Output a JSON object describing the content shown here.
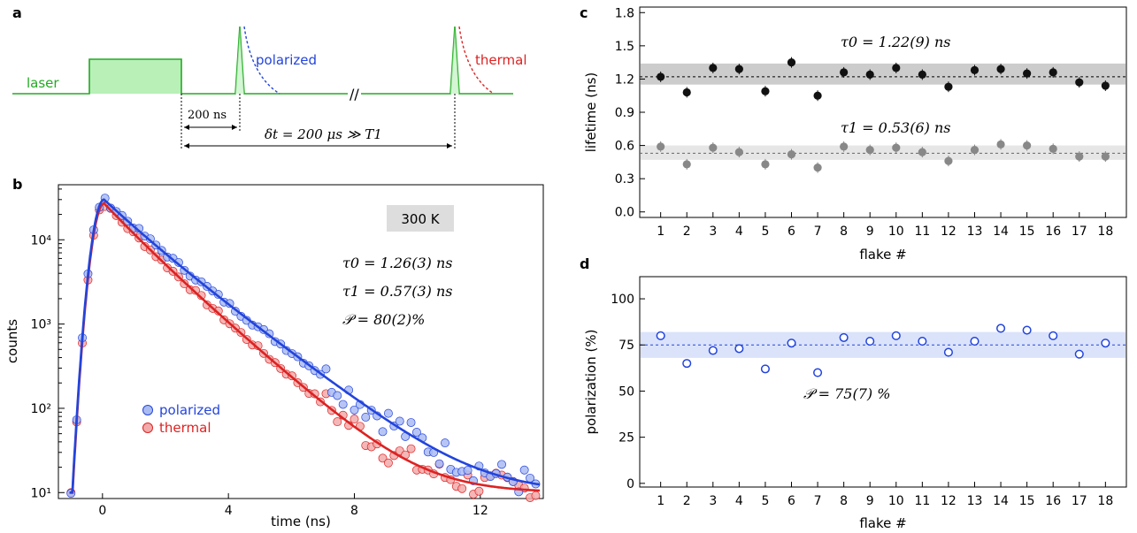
{
  "panels": {
    "a": "a",
    "b": "b",
    "c": "c",
    "d": "d"
  },
  "panel_a": {
    "laser_label": "laser",
    "polarized_label": "polarized",
    "thermal_label": "thermal",
    "delay_label": "200 ns",
    "interval_label": "δt = 200 μs ≫ T1",
    "break_mark": "//",
    "colors": {
      "laser": "#22aa22",
      "fill": "#b8f0b8",
      "polarized": "#2244dd",
      "thermal": "#dd2222"
    }
  },
  "chart_data": [
    {
      "type": "scatter",
      "panel": "b",
      "xlabel": "time (ns)",
      "ylabel": "counts",
      "xlim": [
        -1.4,
        14
      ],
      "ylim": [
        8.5,
        45000
      ],
      "yscale": "log",
      "xticks": [
        0,
        4,
        8,
        12
      ],
      "yticks_labels": [
        "10¹",
        "10²",
        "10³",
        "10⁴"
      ],
      "annotation_box": "300 K",
      "annotations": [
        "τ0 = 1.26(3) ns",
        "τ1 = 0.57(3) ns",
        "𝒫 = 80(2)%"
      ],
      "legend_placement": "lower-left",
      "series": [
        {
          "name": "polarized",
          "color": "#2244dd",
          "marker_fill": "#aabbf2"
        },
        {
          "name": "thermal",
          "color": "#dd2222",
          "marker_fill": "#f2aaaa"
        }
      ],
      "model": {
        "polarized": {
          "peak": 30000,
          "t_peak": 0.05,
          "rise": 0.45,
          "decay": 1.26,
          "bg": 10
        },
        "thermal": {
          "peak": 27000,
          "t_peak": 0.05,
          "rise": 0.45,
          "decay": 1.12,
          "bg": 10
        }
      }
    },
    {
      "type": "scatter",
      "panel": "c",
      "xlabel": "flake #",
      "ylabel": "lifetime (ns)",
      "xlim": [
        0.2,
        18.8
      ],
      "ylim": [
        -0.05,
        1.85
      ],
      "x": [
        1,
        2,
        3,
        4,
        5,
        6,
        7,
        8,
        9,
        10,
        11,
        12,
        13,
        14,
        15,
        16,
        17,
        18
      ],
      "yticks": [
        0.0,
        0.3,
        0.6,
        0.9,
        1.2,
        1.5,
        1.8
      ],
      "series": [
        {
          "name": "τ0",
          "color": "#111111",
          "values": [
            1.22,
            1.08,
            1.3,
            1.29,
            1.09,
            1.35,
            1.05,
            1.26,
            1.24,
            1.3,
            1.24,
            1.13,
            1.28,
            1.29,
            1.25,
            1.26,
            1.17,
            1.14
          ],
          "mean": 1.22,
          "band": [
            1.15,
            1.34
          ]
        },
        {
          "name": "τ1",
          "color": "#888888",
          "values": [
            0.59,
            0.43,
            0.58,
            0.54,
            0.43,
            0.52,
            0.4,
            0.59,
            0.56,
            0.58,
            0.54,
            0.46,
            0.56,
            0.61,
            0.6,
            0.57,
            0.5,
            0.5
          ],
          "mean": 0.53,
          "band": [
            0.47,
            0.6
          ]
        }
      ],
      "annotations": [
        "τ0 = 1.22(9) ns",
        "τ1 = 0.53(6) ns"
      ]
    },
    {
      "type": "scatter",
      "panel": "d",
      "xlabel": "flake #",
      "ylabel": "polarization (%)",
      "xlim": [
        0.2,
        18.8
      ],
      "ylim": [
        -2,
        112
      ],
      "x": [
        1,
        2,
        3,
        4,
        5,
        6,
        7,
        8,
        9,
        10,
        11,
        12,
        13,
        14,
        15,
        16,
        17,
        18
      ],
      "yticks": [
        0,
        25,
        50,
        75,
        100
      ],
      "series": [
        {
          "color": "#2244dd",
          "values": [
            80,
            65,
            72,
            73,
            62,
            76,
            60,
            79,
            77,
            80,
            77,
            71,
            77,
            84,
            83,
            80,
            70,
            76
          ],
          "mean": 75,
          "band": [
            68,
            82
          ]
        }
      ],
      "annotations": [
        "𝒫 = 75(7) %"
      ]
    }
  ]
}
